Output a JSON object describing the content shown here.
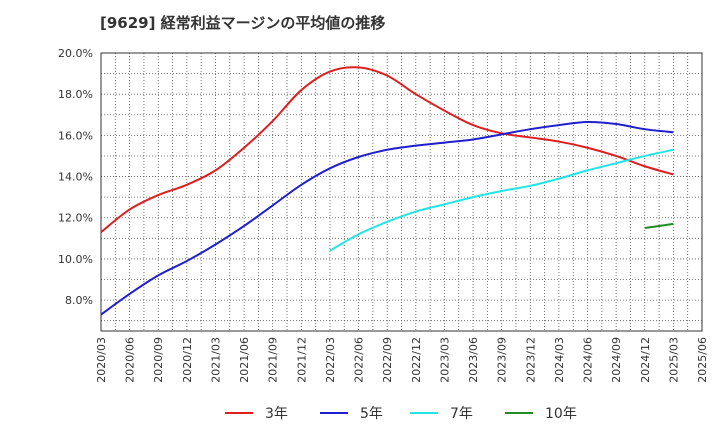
{
  "title": "[9629]  経常利益マージンの平均値の推移",
  "chart_data": {
    "type": "line",
    "title": "[9629]  経常利益マージンの平均値の推移",
    "xlabel": "",
    "ylabel": "",
    "ylim": [
      6.5,
      20.0
    ],
    "y_ticks": [
      "8.0%",
      "10.0%",
      "12.0%",
      "14.0%",
      "16.0%",
      "18.0%",
      "20.0%"
    ],
    "x_ticks": [
      "2020/03",
      "2020/06",
      "2020/09",
      "2020/12",
      "2021/03",
      "2021/06",
      "2021/09",
      "2021/12",
      "2022/03",
      "2022/06",
      "2022/09",
      "2022/12",
      "2023/03",
      "2023/06",
      "2023/09",
      "2023/12",
      "2024/03",
      "2024/06",
      "2024/09",
      "2024/12",
      "2025/03",
      "2025/06"
    ],
    "grid": true,
    "legend_position": "bottom",
    "series": [
      {
        "name": "3年",
        "color": "#dd1f1f",
        "values": [
          11.3,
          12.4,
          13.1,
          13.6,
          14.3,
          15.4,
          16.7,
          18.2,
          19.1,
          19.3,
          18.9,
          18.0,
          17.2,
          16.5,
          16.1,
          15.9,
          15.7,
          15.4,
          15.0,
          14.5,
          14.1,
          null
        ]
      },
      {
        "name": "5年",
        "color": "#1f1fcf",
        "values": [
          7.3,
          8.3,
          9.2,
          9.9,
          10.7,
          11.6,
          12.6,
          13.6,
          14.4,
          14.95,
          15.3,
          15.5,
          15.65,
          15.8,
          16.05,
          16.3,
          16.5,
          16.65,
          16.55,
          16.3,
          16.15,
          null
        ]
      },
      {
        "name": "7年",
        "color": "#22e5e5",
        "values": [
          null,
          null,
          null,
          null,
          null,
          null,
          null,
          null,
          10.4,
          11.2,
          11.8,
          12.3,
          12.65,
          13.0,
          13.3,
          13.55,
          13.9,
          14.3,
          14.65,
          15.0,
          15.3,
          null
        ]
      },
      {
        "name": "10年",
        "color": "#228b22",
        "values": [
          null,
          null,
          null,
          null,
          null,
          null,
          null,
          null,
          null,
          null,
          null,
          null,
          null,
          null,
          null,
          null,
          null,
          null,
          null,
          11.5,
          11.7,
          null
        ]
      }
    ]
  }
}
